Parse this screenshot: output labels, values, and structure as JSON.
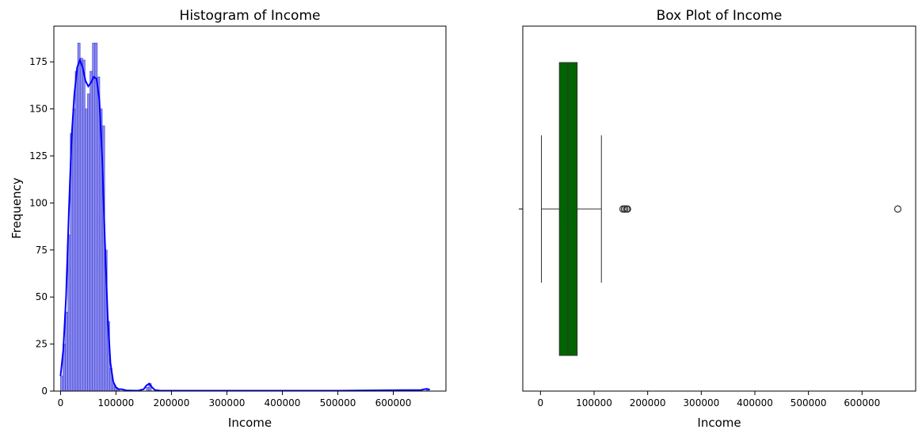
{
  "chart_data": [
    {
      "type": "bar",
      "title": "Histogram of Income",
      "xlabel": "Income",
      "ylabel": "Frequency",
      "xlim": [
        -12000,
        695000
      ],
      "ylim": [
        0,
        194
      ],
      "xticks": [
        0,
        100000,
        200000,
        300000,
        400000,
        500000,
        600000
      ],
      "yticks": [
        0,
        25,
        50,
        75,
        100,
        125,
        150,
        175
      ],
      "grid": false,
      "colors": {
        "bar_fill": "#8a8aee",
        "bar_edge": "#4040d0",
        "kde_line": "#0000ff"
      },
      "bin_width": 4425,
      "bins": [
        {
          "x": 0,
          "count": 8
        },
        {
          "x": 4425,
          "count": 25
        },
        {
          "x": 8850,
          "count": 42
        },
        {
          "x": 13275,
          "count": 83
        },
        {
          "x": 17700,
          "count": 137
        },
        {
          "x": 22125,
          "count": 150
        },
        {
          "x": 26550,
          "count": 170
        },
        {
          "x": 30975,
          "count": 185
        },
        {
          "x": 35400,
          "count": 177
        },
        {
          "x": 39825,
          "count": 176
        },
        {
          "x": 44250,
          "count": 150
        },
        {
          "x": 48675,
          "count": 158
        },
        {
          "x": 53100,
          "count": 170
        },
        {
          "x": 57525,
          "count": 185
        },
        {
          "x": 61950,
          "count": 185
        },
        {
          "x": 66375,
          "count": 167
        },
        {
          "x": 70800,
          "count": 150
        },
        {
          "x": 75225,
          "count": 141
        },
        {
          "x": 79650,
          "count": 75
        },
        {
          "x": 84075,
          "count": 37
        },
        {
          "x": 88500,
          "count": 12
        },
        {
          "x": 92925,
          "count": 4
        },
        {
          "x": 97350,
          "count": 2
        },
        {
          "x": 101775,
          "count": 1
        },
        {
          "x": 154875,
          "count": 2
        },
        {
          "x": 159300,
          "count": 4
        },
        {
          "x": 659550,
          "count": 1
        }
      ],
      "kde": {
        "x": [
          0,
          5000,
          10000,
          15000,
          20000,
          25000,
          30000,
          35000,
          40000,
          45000,
          50000,
          55000,
          60000,
          65000,
          70000,
          75000,
          80000,
          85000,
          90000,
          95000,
          100000,
          105000,
          110000,
          120000,
          140000,
          150000,
          155000,
          160000,
          165000,
          170000,
          180000,
          300000,
          500000,
          650000,
          660000,
          666000
        ],
        "y": [
          8,
          22,
          50,
          95,
          135,
          158,
          172,
          176,
          172,
          165,
          162,
          164,
          167,
          166,
          155,
          125,
          80,
          40,
          15,
          5,
          2,
          1,
          1,
          0.3,
          0.2,
          1,
          3,
          4,
          2,
          0.6,
          0.2,
          0.2,
          0.2,
          0.6,
          1.2,
          0.8
        ]
      }
    },
    {
      "type": "box",
      "title": "Box Plot of Income",
      "xlabel": "Income",
      "xlim": [
        -33000,
        700000
      ],
      "xticks": [
        0,
        100000,
        200000,
        300000,
        400000,
        500000,
        600000
      ],
      "grid": false,
      "colors": {
        "box_fill": "#006400",
        "line": "#333333"
      },
      "stats": {
        "whisker_low": 1730,
        "q1": 35300,
        "median": 51300,
        "q3": 68500,
        "whisker_high": 113700
      },
      "outliers": [
        153900,
        156900,
        157100,
        157200,
        160800,
        162400,
        666666
      ]
    }
  ]
}
